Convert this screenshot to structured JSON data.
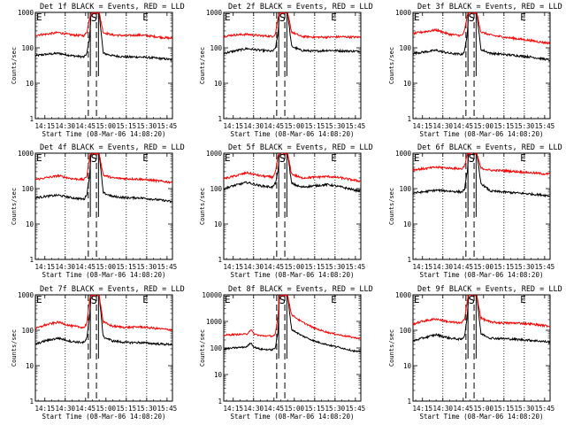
{
  "figure": {
    "ylabel": "Counts/sec",
    "xlabel": "Start Time (08-Mar-06 14:08:20)",
    "x_tick_labels": [
      "14:15",
      "14:30",
      "14:45",
      "15:00",
      "15:15",
      "15:30",
      "15:45"
    ],
    "y_tick_labels_3dec": [
      "1",
      "10",
      "100",
      "1000"
    ],
    "y_tick_labels_4dec": [
      "1",
      "10",
      "100",
      "1000",
      "10000"
    ],
    "marker_labels": {
      "start_e": "E",
      "s": "S",
      "end_e": "E"
    },
    "colors": {
      "events": "#000000",
      "lld": "#ff0000",
      "background": "#ffffff"
    }
  },
  "chart_data": [
    {
      "type": "line",
      "title": "Det 1f  BLACK = Events, RED = LLD",
      "x_range": [
        "14:08",
        "15:49"
      ],
      "ylim": [
        1,
        1000
      ],
      "y_scale": "log",
      "series": [
        {
          "name": "Events",
          "color": "#000000",
          "x": [
            "14:08",
            "14:15",
            "14:25",
            "14:35",
            "14:44",
            "14:46",
            "14:48",
            "14:49",
            "14:55",
            "14:58",
            "15:05",
            "15:15",
            "15:25",
            "15:35",
            "15:45",
            "15:49"
          ],
          "values": [
            60,
            65,
            70,
            60,
            55,
            70,
            200,
            1000,
            1000,
            70,
            60,
            55,
            55,
            52,
            48,
            45
          ]
        },
        {
          "name": "LLD",
          "color": "#ff0000",
          "x": [
            "14:08",
            "14:15",
            "14:25",
            "14:35",
            "14:44",
            "14:46",
            "14:48",
            "14:49",
            "14:55",
            "14:58",
            "15:05",
            "15:15",
            "15:25",
            "15:35",
            "15:45",
            "15:49"
          ],
          "values": [
            230,
            240,
            270,
            230,
            220,
            280,
            700,
            1000,
            1000,
            270,
            230,
            220,
            230,
            210,
            190,
            185
          ]
        }
      ]
    },
    {
      "type": "line",
      "title": "Det 2f  BLACK = Events, RED = LLD",
      "x_range": [
        "14:08",
        "15:49"
      ],
      "ylim": [
        1,
        1000
      ],
      "y_scale": "log",
      "series": [
        {
          "name": "Events",
          "color": "#000000",
          "x": [
            "14:08",
            "14:15",
            "14:25",
            "14:35",
            "14:44",
            "14:46",
            "14:48",
            "14:49",
            "14:55",
            "14:58",
            "15:05",
            "15:15",
            "15:25",
            "15:35",
            "15:45",
            "15:49"
          ],
          "values": [
            70,
            80,
            95,
            85,
            80,
            95,
            250,
            1000,
            1000,
            110,
            85,
            80,
            85,
            82,
            80,
            80
          ]
        },
        {
          "name": "LLD",
          "color": "#ff0000",
          "x": [
            "14:08",
            "14:15",
            "14:25",
            "14:35",
            "14:44",
            "14:46",
            "14:48",
            "14:49",
            "14:55",
            "14:58",
            "15:05",
            "15:15",
            "15:25",
            "15:35",
            "15:45",
            "15:49"
          ],
          "values": [
            210,
            230,
            240,
            220,
            210,
            240,
            700,
            1000,
            1000,
            280,
            210,
            200,
            200,
            205,
            200,
            200
          ]
        }
      ]
    },
    {
      "type": "line",
      "title": "Det 3f  BLACK = Events, RED = LLD",
      "x_range": [
        "14:08",
        "15:49"
      ],
      "ylim": [
        1,
        1000
      ],
      "y_scale": "log",
      "series": [
        {
          "name": "Events",
          "color": "#000000",
          "x": [
            "14:08",
            "14:15",
            "14:25",
            "14:35",
            "14:44",
            "14:46",
            "14:48",
            "14:49",
            "14:55",
            "14:58",
            "15:05",
            "15:15",
            "15:25",
            "15:35",
            "15:45",
            "15:49"
          ],
          "values": [
            70,
            75,
            85,
            70,
            65,
            80,
            250,
            1000,
            1000,
            90,
            70,
            65,
            60,
            55,
            48,
            45
          ]
        },
        {
          "name": "LLD",
          "color": "#ff0000",
          "x": [
            "14:08",
            "14:15",
            "14:25",
            "14:35",
            "14:44",
            "14:46",
            "14:48",
            "14:49",
            "14:55",
            "14:58",
            "15:05",
            "15:15",
            "15:25",
            "15:35",
            "15:45",
            "15:49"
          ],
          "values": [
            250,
            280,
            320,
            240,
            220,
            300,
            800,
            1000,
            1000,
            280,
            230,
            200,
            180,
            160,
            140,
            135
          ]
        }
      ]
    },
    {
      "type": "line",
      "title": "Det 4f  BLACK = Events, RED = LLD",
      "x_range": [
        "14:08",
        "15:49"
      ],
      "ylim": [
        1,
        1000
      ],
      "y_scale": "log",
      "series": [
        {
          "name": "Events",
          "color": "#000000",
          "x": [
            "14:08",
            "14:15",
            "14:25",
            "14:35",
            "14:44",
            "14:46",
            "14:48",
            "14:49",
            "14:55",
            "14:58",
            "15:05",
            "15:15",
            "15:25",
            "15:35",
            "15:45",
            "15:49"
          ],
          "values": [
            55,
            60,
            65,
            55,
            50,
            70,
            250,
            1000,
            1000,
            75,
            60,
            55,
            55,
            50,
            45,
            42
          ]
        },
        {
          "name": "LLD",
          "color": "#ff0000",
          "x": [
            "14:08",
            "14:15",
            "14:25",
            "14:35",
            "14:44",
            "14:46",
            "14:48",
            "14:49",
            "14:55",
            "14:58",
            "15:05",
            "15:15",
            "15:25",
            "15:35",
            "15:45",
            "15:49"
          ],
          "values": [
            180,
            200,
            230,
            190,
            180,
            230,
            800,
            1000,
            1000,
            240,
            200,
            190,
            185,
            170,
            155,
            150
          ]
        }
      ]
    },
    {
      "type": "line",
      "title": "Det 5f  BLACK = Events, RED = LLD",
      "x_range": [
        "14:08",
        "15:49"
      ],
      "ylim": [
        1,
        1000
      ],
      "y_scale": "log",
      "series": [
        {
          "name": "Events",
          "color": "#000000",
          "x": [
            "14:08",
            "14:15",
            "14:25",
            "14:35",
            "14:44",
            "14:46",
            "14:48",
            "14:49",
            "14:55",
            "14:58",
            "15:05",
            "15:15",
            "15:25",
            "15:35",
            "15:45",
            "15:49"
          ],
          "values": [
            100,
            120,
            150,
            120,
            110,
            140,
            300,
            1000,
            1000,
            140,
            110,
            120,
            130,
            110,
            90,
            85
          ]
        },
        {
          "name": "LLD",
          "color": "#ff0000",
          "x": [
            "14:08",
            "14:15",
            "14:25",
            "14:35",
            "14:44",
            "14:46",
            "14:48",
            "14:49",
            "14:55",
            "14:58",
            "15:05",
            "15:15",
            "15:25",
            "15:35",
            "15:45",
            "15:49"
          ],
          "values": [
            190,
            220,
            280,
            230,
            210,
            280,
            800,
            1000,
            1000,
            260,
            200,
            210,
            220,
            200,
            170,
            160
          ]
        }
      ]
    },
    {
      "type": "line",
      "title": "Det 6f  BLACK = Events, RED = LLD",
      "x_range": [
        "14:08",
        "15:49"
      ],
      "ylim": [
        1,
        1000
      ],
      "y_scale": "log",
      "series": [
        {
          "name": "Events",
          "color": "#000000",
          "x": [
            "14:08",
            "14:15",
            "14:25",
            "14:35",
            "14:44",
            "14:46",
            "14:48",
            "14:49",
            "14:55",
            "14:58",
            "15:05",
            "15:15",
            "15:25",
            "15:35",
            "15:45",
            "15:49"
          ],
          "values": [
            75,
            80,
            90,
            85,
            80,
            95,
            300,
            1000,
            1000,
            140,
            85,
            80,
            75,
            70,
            65,
            62
          ]
        },
        {
          "name": "LLD",
          "color": "#ff0000",
          "x": [
            "14:08",
            "14:15",
            "14:25",
            "14:35",
            "14:44",
            "14:46",
            "14:48",
            "14:49",
            "14:55",
            "14:58",
            "15:05",
            "15:15",
            "15:25",
            "15:35",
            "15:45",
            "15:49"
          ],
          "values": [
            340,
            360,
            400,
            380,
            360,
            450,
            900,
            1000,
            1000,
            380,
            330,
            320,
            300,
            280,
            260,
            255
          ]
        }
      ]
    },
    {
      "type": "line",
      "title": "Det 7f  BLACK = Events, RED = LLD",
      "x_range": [
        "14:08",
        "15:49"
      ],
      "ylim": [
        1,
        1000
      ],
      "y_scale": "log",
      "series": [
        {
          "name": "Events",
          "color": "#000000",
          "x": [
            "14:08",
            "14:15",
            "14:25",
            "14:35",
            "14:44",
            "14:46",
            "14:48",
            "14:49",
            "14:55",
            "14:58",
            "15:05",
            "15:15",
            "15:25",
            "15:35",
            "15:45",
            "15:49"
          ],
          "values": [
            40,
            50,
            60,
            48,
            45,
            60,
            250,
            1000,
            1000,
            65,
            50,
            45,
            45,
            42,
            40,
            40
          ]
        },
        {
          "name": "LLD",
          "color": "#ff0000",
          "x": [
            "14:08",
            "14:15",
            "14:25",
            "14:35",
            "14:44",
            "14:46",
            "14:48",
            "14:49",
            "14:55",
            "14:58",
            "15:05",
            "15:15",
            "15:25",
            "15:35",
            "15:45",
            "15:49"
          ],
          "values": [
            110,
            140,
            170,
            130,
            120,
            160,
            700,
            1000,
            1000,
            170,
            130,
            120,
            125,
            115,
            105,
            105
          ]
        }
      ]
    },
    {
      "type": "line",
      "title": "Det 8f  BLACK = Events, RED = LLD",
      "x_range": [
        "14:08",
        "15:49"
      ],
      "ylim": [
        1,
        10000
      ],
      "y_scale": "log",
      "series": [
        {
          "name": "Events",
          "color": "#000000",
          "x": [
            "14:08",
            "14:15",
            "14:25",
            "14:28",
            "14:30",
            "14:35",
            "14:44",
            "14:46",
            "14:48",
            "14:49",
            "14:55",
            "14:58",
            "15:05",
            "15:15",
            "15:25",
            "15:35",
            "15:45",
            "15:49"
          ],
          "values": [
            90,
            100,
            110,
            160,
            110,
            90,
            85,
            100,
            400,
            10000,
            10000,
            500,
            300,
            180,
            130,
            100,
            75,
            70
          ]
        },
        {
          "name": "LLD",
          "color": "#ff0000",
          "x": [
            "14:08",
            "14:15",
            "14:25",
            "14:28",
            "14:30",
            "14:35",
            "14:44",
            "14:46",
            "14:48",
            "14:49",
            "14:55",
            "14:58",
            "15:05",
            "15:15",
            "15:25",
            "15:35",
            "15:45",
            "15:49"
          ],
          "values": [
            300,
            320,
            330,
            500,
            340,
            290,
            280,
            320,
            1500,
            10000,
            10000,
            1800,
            1000,
            550,
            380,
            300,
            240,
            230
          ]
        }
      ]
    },
    {
      "type": "line",
      "title": "Det 9f  BLACK = Events, RED = LLD",
      "x_range": [
        "14:08",
        "15:49"
      ],
      "ylim": [
        1,
        1000
      ],
      "y_scale": "log",
      "series": [
        {
          "name": "Events",
          "color": "#000000",
          "x": [
            "14:08",
            "14:15",
            "14:25",
            "14:35",
            "14:44",
            "14:46",
            "14:48",
            "14:49",
            "14:55",
            "14:58",
            "15:05",
            "15:15",
            "15:25",
            "15:35",
            "15:45",
            "15:49"
          ],
          "values": [
            50,
            60,
            75,
            60,
            55,
            70,
            250,
            1000,
            1000,
            80,
            60,
            58,
            55,
            52,
            48,
            46
          ]
        },
        {
          "name": "LLD",
          "color": "#ff0000",
          "x": [
            "14:08",
            "14:15",
            "14:25",
            "14:35",
            "14:44",
            "14:46",
            "14:48",
            "14:49",
            "14:55",
            "14:58",
            "15:05",
            "15:15",
            "15:25",
            "15:35",
            "15:45",
            "15:49"
          ],
          "values": [
            150,
            180,
            210,
            170,
            160,
            210,
            700,
            1000,
            1000,
            220,
            170,
            160,
            160,
            150,
            135,
            130
          ]
        }
      ]
    }
  ]
}
